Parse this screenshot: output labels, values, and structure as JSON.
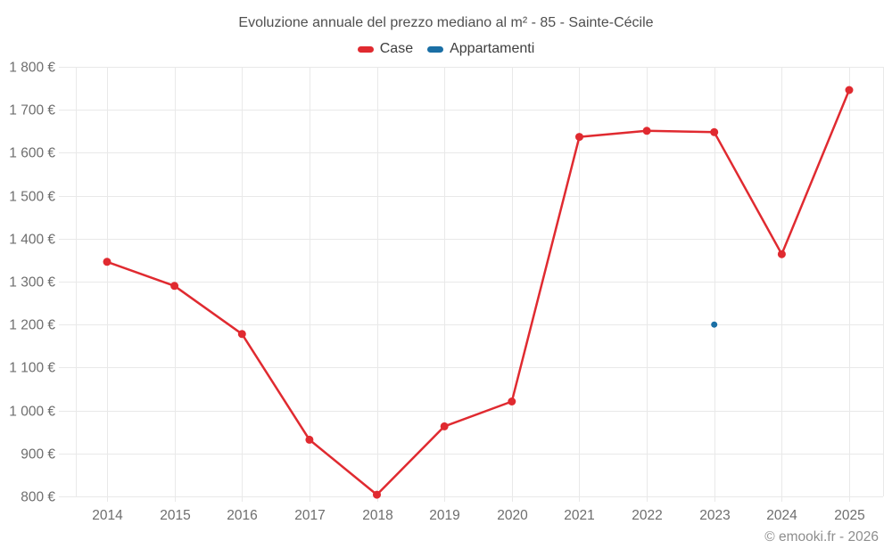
{
  "title": "Evoluzione annuale del prezzo mediano al m² - 85 - Sainte-Cécile",
  "footer": "© emooki.fr - 2026",
  "legend": [
    {
      "label": "Case",
      "color": "#e02a30"
    },
    {
      "label": "Appartamenti",
      "color": "#1a6fa5"
    }
  ],
  "chart_data": {
    "type": "line",
    "title": "Evoluzione annuale del prezzo mediano al m² - 85 - Sainte-Cécile",
    "xlabel": "",
    "ylabel": "",
    "categories": [
      "2014",
      "2015",
      "2016",
      "2017",
      "2018",
      "2019",
      "2020",
      "2021",
      "2022",
      "2023",
      "2024",
      "2025"
    ],
    "series": [
      {
        "name": "Case",
        "color": "#e02a30",
        "values": [
          1346,
          1290,
          1178,
          932,
          804,
          963,
          1021,
          1637,
          1651,
          1648,
          1364,
          1746
        ]
      },
      {
        "name": "Appartamenti",
        "color": "#1a6fa5",
        "values": [
          null,
          null,
          null,
          null,
          null,
          null,
          null,
          null,
          null,
          1200,
          null,
          null
        ]
      }
    ],
    "ylim": [
      800,
      1800
    ],
    "y_tick_step": 100,
    "y_tick_labels": [
      "800 €",
      "900 €",
      "1 000 €",
      "1 100 €",
      "1 200 €",
      "1 300 €",
      "1 400 €",
      "1 500 €",
      "1 600 €",
      "1 700 €",
      "1 800 €"
    ],
    "grid": true,
    "legend_position": "top",
    "grid_color": "#e9e9e9",
    "axis_text_color": "#6e6e6e"
  }
}
